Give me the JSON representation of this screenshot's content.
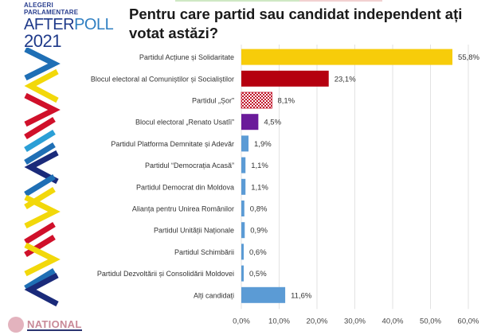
{
  "logo": {
    "line1": "ALEGERI",
    "line2": "PARLAMENTARE",
    "after": "AFTER",
    "poll": "POLL",
    "year": "2021"
  },
  "watermark": "NATIONAL",
  "chart_data": {
    "type": "bar",
    "orientation": "horizontal",
    "title": "Pentru care partid sau candidat independent ați votat astăzi?",
    "xlabel": "",
    "ylabel": "",
    "xlim": [
      0,
      60
    ],
    "x_ticks": [
      "0,0%",
      "10,0%",
      "20,0%",
      "30,0%",
      "40,0%",
      "50,0%",
      "60,0%"
    ],
    "x_tick_values": [
      0,
      10,
      20,
      30,
      40,
      50,
      60
    ],
    "grid": true,
    "legend": "none",
    "categories": [
      "Partidul Acțiune și Solidaritate",
      "Blocul electoral al Comuniștilor și Socialiștilor",
      "Partidul „Șor”",
      "Blocul electoral „Renato Usatîi”",
      "Partidul Platforma Demnitate și Adevăr",
      "Partidul “Democrația Acasă”",
      "Partidul Democrat din Moldova",
      "Alianța pentru Unirea Românilor",
      "Partidul Unității Naționale",
      "Partidul Schimbării",
      "Partidul Dezvoltării și Consolidării Moldovei",
      "Alți candidați"
    ],
    "values": [
      55.8,
      23.1,
      8.1,
      4.5,
      1.9,
      1.1,
      1.1,
      0.8,
      0.9,
      0.6,
      0.5,
      11.6
    ],
    "labels": [
      "55,8%",
      "23,1%",
      "8,1%",
      "4,5%",
      "1,9%",
      "1,1%",
      "1,1%",
      "0,8%",
      "0,9%",
      "0,6%",
      "0,5%",
      "11,6%"
    ],
    "colors": [
      "#f7cc0a",
      "#b5000f",
      "pattern-red-check",
      "#6a1b9a",
      "#5b9bd5",
      "#5b9bd5",
      "#5b9bd5",
      "#5b9bd5",
      "#5b9bd5",
      "#5b9bd5",
      "#5b9bd5",
      "#5b9bd5"
    ]
  }
}
